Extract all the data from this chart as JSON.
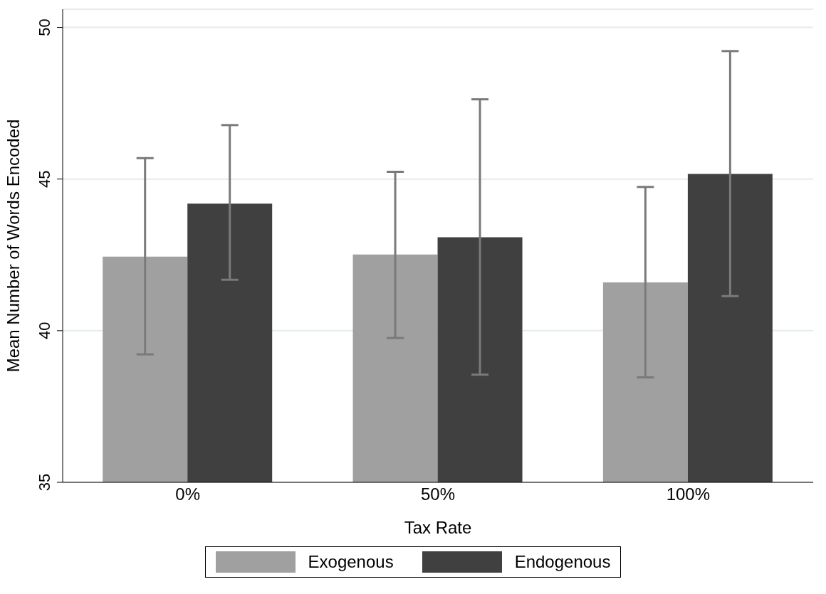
{
  "chart_data": {
    "type": "bar",
    "xlabel": "Tax Rate",
    "ylabel": "Mean Number of Words Encoded",
    "categories": [
      "0%",
      "50%",
      "100%"
    ],
    "series": [
      {
        "name": "Exogenous",
        "color": "#a0a0a0",
        "values": [
          42.44,
          42.51,
          41.59
        ],
        "errors": [
          [
            39.22,
            45.69
          ],
          [
            39.76,
            45.24
          ],
          [
            38.46,
            44.74
          ]
        ]
      },
      {
        "name": "Endogenous",
        "color": "#404040",
        "values": [
          44.19,
          43.08,
          45.17
        ],
        "errors": [
          [
            41.68,
            46.78
          ],
          [
            38.55,
            47.63
          ],
          [
            41.14,
            49.22
          ]
        ]
      }
    ],
    "ylim": [
      35,
      50.6
    ],
    "yticks": [
      35,
      40,
      45,
      50
    ],
    "grid": "y",
    "legend": "bottom"
  }
}
